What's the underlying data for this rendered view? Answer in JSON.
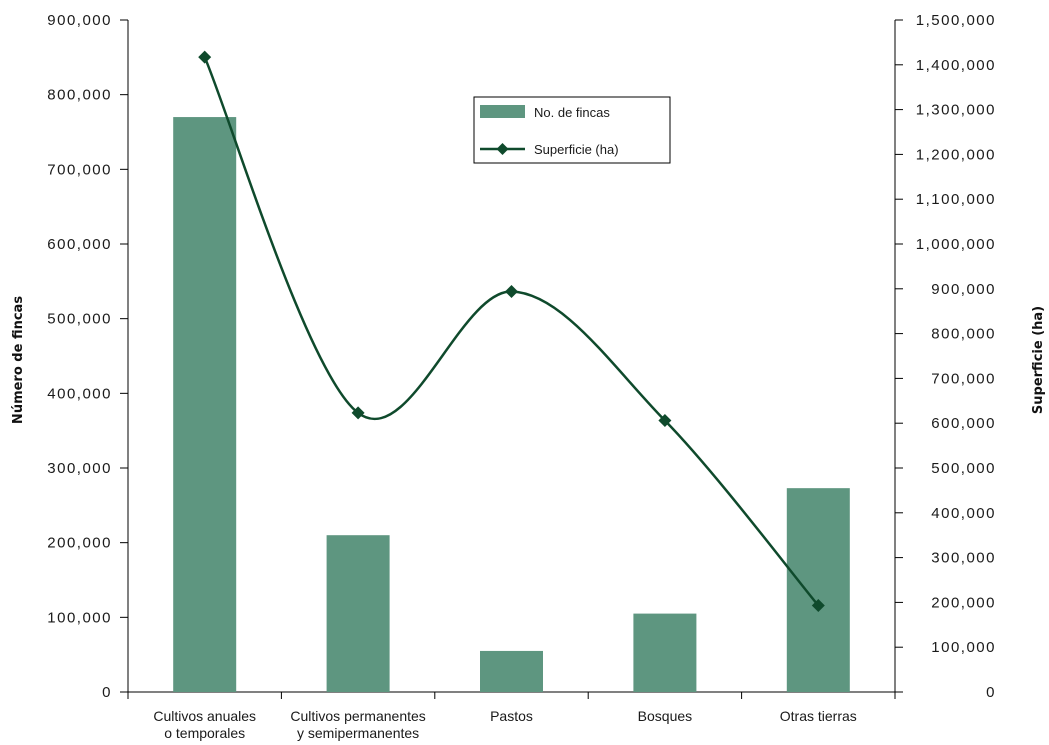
{
  "chart_data": {
    "type": "bar",
    "categories": [
      "Cultivos anuales\no temporales",
      "Cultivos permanentes\ny semipermanentes",
      "Pastos",
      "Bosques",
      "Otras tierras"
    ],
    "series": [
      {
        "name": "No. de fincas",
        "type": "bar",
        "axis": "left",
        "color": "#5e9680",
        "values": [
          770000,
          210000,
          55000,
          105000,
          273000
        ]
      },
      {
        "name": "Superficie (ha)",
        "type": "line",
        "axis": "right",
        "color": "#0f4a2c",
        "marker": "diamond",
        "smooth": true,
        "values": [
          1417000,
          623000,
          894000,
          606000,
          193000
        ]
      }
    ],
    "ylabel": "Número de fincas",
    "y2label": "Superficie (ha)",
    "ylim": [
      0,
      900000
    ],
    "y2lim": [
      0,
      1500000
    ],
    "yticks": [
      "0",
      "100,000",
      "200,000",
      "300,000",
      "400,000",
      "500,000",
      "600,000",
      "700,000",
      "800,000",
      "900,000"
    ],
    "y2ticks": [
      "0",
      "100,000",
      "200,000",
      "300,000",
      "400,000",
      "500,000",
      "600,000",
      "700,000",
      "800,000",
      "900,000",
      "1,000,000",
      "1,100,000",
      "1,200,000",
      "1,300,000",
      "1,400,000",
      "1,500,000"
    ],
    "grid": false,
    "legend": "top-center"
  }
}
